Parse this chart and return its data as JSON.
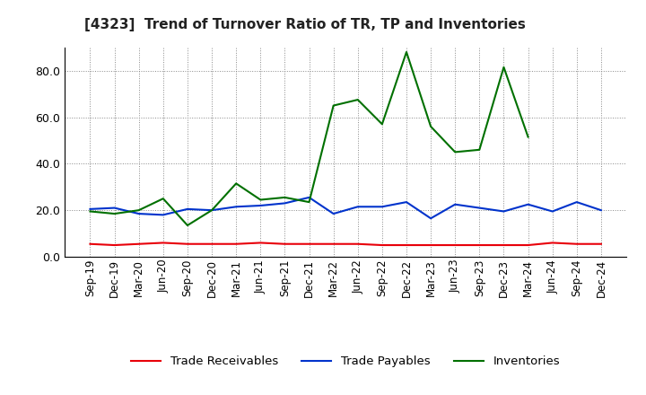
{
  "title": "[4323]  Trend of Turnover Ratio of TR, TP and Inventories",
  "labels": [
    "Sep-19",
    "Dec-19",
    "Mar-20",
    "Jun-20",
    "Sep-20",
    "Dec-20",
    "Mar-21",
    "Jun-21",
    "Sep-21",
    "Dec-21",
    "Mar-22",
    "Jun-22",
    "Sep-22",
    "Dec-22",
    "Mar-23",
    "Jun-23",
    "Sep-23",
    "Dec-23",
    "Mar-24",
    "Jun-24",
    "Sep-24",
    "Dec-24"
  ],
  "trade_receivables": [
    5.5,
    5.0,
    5.5,
    6.0,
    5.5,
    5.5,
    5.5,
    6.0,
    5.5,
    5.5,
    5.5,
    5.5,
    5.0,
    5.0,
    5.0,
    5.0,
    5.0,
    5.0,
    5.0,
    6.0,
    5.5,
    5.5
  ],
  "trade_payables": [
    20.5,
    21.0,
    18.5,
    18.0,
    20.5,
    20.0,
    21.5,
    22.0,
    23.0,
    25.5,
    18.5,
    21.5,
    21.5,
    23.5,
    16.5,
    22.5,
    21.0,
    19.5,
    22.5,
    19.5,
    23.5,
    20.0
  ],
  "inventories": [
    19.5,
    18.5,
    20.0,
    25.0,
    13.5,
    20.0,
    31.5,
    24.5,
    25.5,
    23.5,
    65.0,
    67.5,
    57.0,
    88.0,
    56.0,
    45.0,
    46.0,
    81.5,
    51.5,
    null,
    null,
    null
  ],
  "tr_color": "#e8000a",
  "tp_color": "#0033cc",
  "inv_color": "#007000",
  "ylim": [
    0,
    90
  ],
  "yticks": [
    0.0,
    20.0,
    40.0,
    60.0,
    80.0
  ],
  "background_color": "#ffffff",
  "grid_color": "#888888",
  "legend_labels": [
    "Trade Receivables",
    "Trade Payables",
    "Inventories"
  ]
}
